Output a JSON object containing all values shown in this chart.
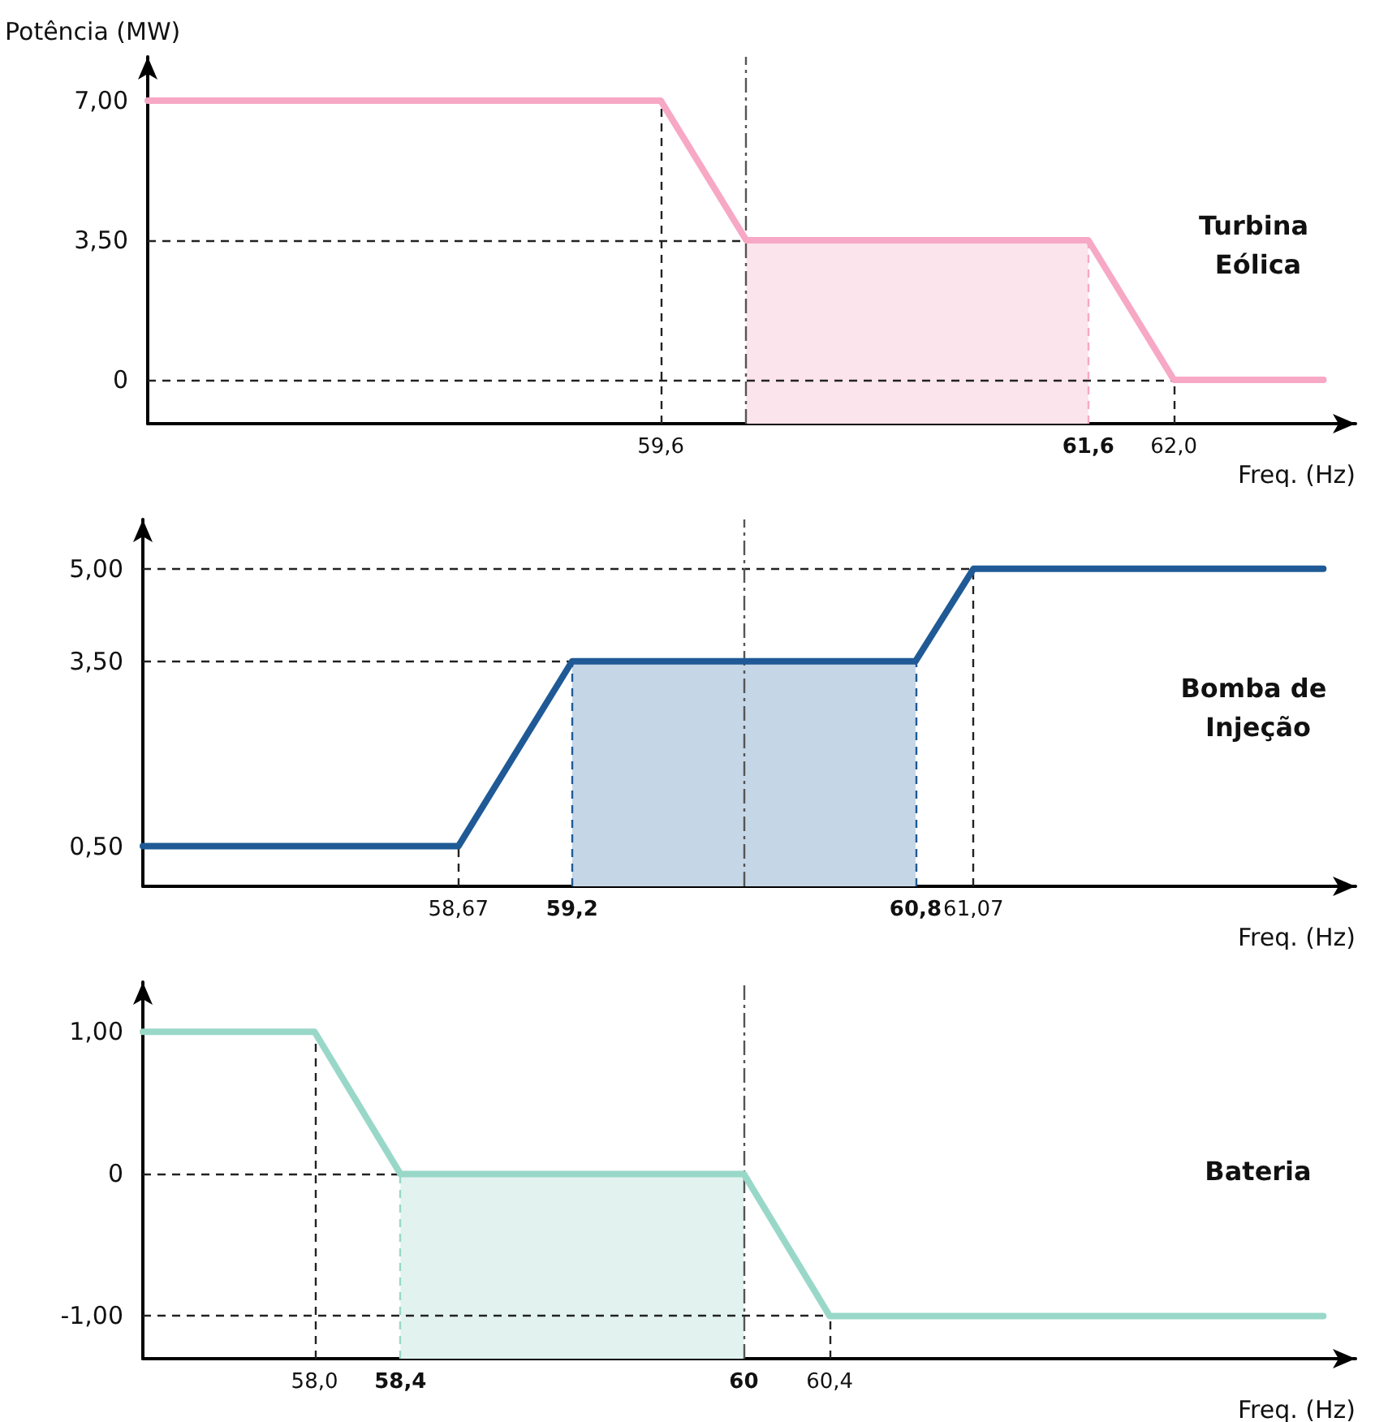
{
  "chart_data": [
    {
      "type": "line",
      "ylabel": "Potência (MW)",
      "xlabel": "Freq. (Hz)",
      "xlim": [
        57.2,
        62.85
      ],
      "ylim": [
        -1.1,
        8.1
      ],
      "xticks": [
        {
          "value": 59.6,
          "label": "59,6"
        },
        {
          "value": 61.6,
          "label": "61,6"
        },
        {
          "value": 62.0,
          "label": "62,0"
        }
      ],
      "yticks": [
        {
          "value": 0,
          "label": "0"
        },
        {
          "value": 3.5,
          "label": "3,50"
        },
        {
          "value": 7,
          "label": "7,00"
        }
      ],
      "series": [
        {
          "name": "Turbina Eólica",
          "color": "#f7a8c4",
          "x": [
            57.2,
            59.6,
            60,
            61.6,
            62.0,
            62.7
          ],
          "values": [
            7,
            7,
            3.5,
            3.5,
            0,
            0
          ]
        }
      ],
      "bands": [
        {
          "axis": "x",
          "from": 60,
          "to": 61.6,
          "color": "#fce4ec"
        }
      ],
      "ref_lines": [
        {
          "axis": "y",
          "value": 3.5,
          "line_style": "dashed"
        },
        {
          "axis": "y",
          "value": 0,
          "line_style": "dashed"
        },
        {
          "axis": "x",
          "value": 59.6,
          "line_style": "dashed"
        },
        {
          "axis": "x",
          "value": 61.6,
          "line_style": "dashed",
          "color": "#f7a8c4"
        },
        {
          "axis": "x",
          "value": 62.0,
          "line_style": "dashed"
        },
        {
          "axis": "x",
          "value": 60,
          "line_style": "dashdot"
        }
      ]
    },
    {
      "type": "line",
      "xlabel": "Freq. (Hz)",
      "xlim": [
        57.2,
        62.85
      ],
      "ylim": [
        -0.15,
        5.8
      ],
      "xticks": [
        {
          "value": 58.67,
          "label": "58,67"
        },
        {
          "value": 59.2,
          "label": "59,2"
        },
        {
          "value": 60.8,
          "label": "60,8"
        },
        {
          "value": 61.07,
          "label": "61,07"
        }
      ],
      "yticks": [
        {
          "value": 0.5,
          "label": "0,50"
        },
        {
          "value": 3.5,
          "label": "3,50"
        },
        {
          "value": 5,
          "label": "5,00"
        }
      ],
      "series": [
        {
          "name": "Bomba de Injeção",
          "color": "#1f5a96",
          "x": [
            57.2,
            58.67,
            59.2,
            60.8,
            61.07,
            62.7
          ],
          "values": [
            0.5,
            0.5,
            3.5,
            3.5,
            5,
            5
          ]
        }
      ],
      "bands": [
        {
          "axis": "x",
          "from": 59.2,
          "to": 60.8,
          "color": "#c5d6e6"
        }
      ],
      "ref_lines": [
        {
          "axis": "y",
          "value": 5,
          "line_style": "dashed"
        },
        {
          "axis": "y",
          "value": 3.5,
          "line_style": "dashed"
        },
        {
          "axis": "x",
          "value": 58.67,
          "line_style": "dashed"
        },
        {
          "axis": "x",
          "value": 59.2,
          "line_style": "dashed",
          "color": "#1f5a96"
        },
        {
          "axis": "x",
          "value": 60.8,
          "line_style": "dashed",
          "color": "#1f5a96"
        },
        {
          "axis": "x",
          "value": 61.07,
          "line_style": "dashed"
        },
        {
          "axis": "x",
          "value": 60,
          "line_style": "dashdot"
        }
      ]
    },
    {
      "type": "line",
      "xlabel": "Freq. (Hz)",
      "xlim": [
        57.2,
        62.85
      ],
      "ylim": [
        -1.3,
        1.35
      ],
      "xticks": [
        {
          "value": 58.0,
          "label": "58,0"
        },
        {
          "value": 58.4,
          "label": "58,4"
        },
        {
          "value": 60,
          "label": "60"
        },
        {
          "value": 60.4,
          "label": "60,4"
        }
      ],
      "yticks": [
        {
          "value": -1,
          "label": "-1,00"
        },
        {
          "value": 0,
          "label": "0"
        },
        {
          "value": 1,
          "label": "1,00"
        }
      ],
      "series": [
        {
          "name": "Bateria",
          "color": "#99d8c9",
          "x": [
            57.2,
            58.0,
            58.4,
            60,
            60.4,
            62.7
          ],
          "values": [
            1,
            1,
            0,
            0,
            -1,
            -1
          ]
        }
      ],
      "bands": [
        {
          "axis": "x",
          "from": 58.4,
          "to": 60,
          "color": "#e2f3ef"
        }
      ],
      "ref_lines": [
        {
          "axis": "y",
          "value": 0,
          "line_style": "dashed"
        },
        {
          "axis": "y",
          "value": -1,
          "line_style": "dashed"
        },
        {
          "axis": "x",
          "value": 58.0,
          "line_style": "dashed"
        },
        {
          "axis": "x",
          "value": 58.4,
          "line_style": "dashed",
          "color": "#99d8c9"
        },
        {
          "axis": "x",
          "value": 60.4,
          "line_style": "dashed"
        },
        {
          "axis": "x",
          "value": 60,
          "line_style": "dashdot"
        }
      ]
    }
  ]
}
